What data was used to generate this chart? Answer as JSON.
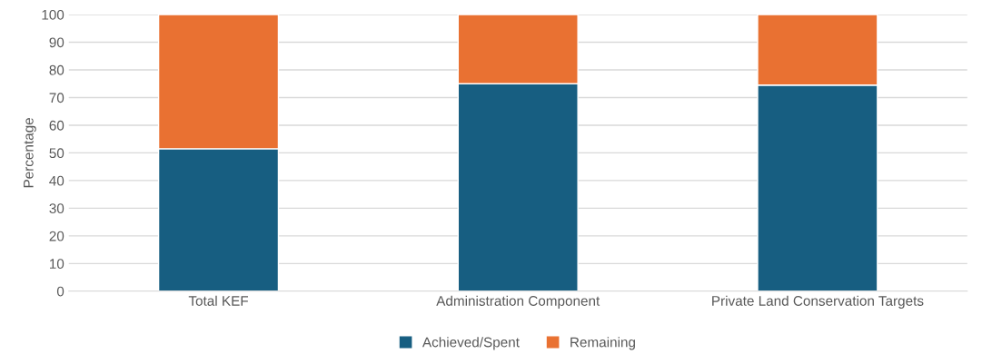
{
  "chart_data": {
    "type": "bar",
    "stacked": true,
    "ylabel": "Percentage",
    "categories": [
      "Total KEF",
      "Administration Component",
      "Private Land Conservation Targets"
    ],
    "series": [
      {
        "name": "Achieved/Spent",
        "color": "#175e81",
        "values": [
          51.5,
          75,
          74.5
        ]
      },
      {
        "name": "Remaining",
        "color": "#e97132",
        "values": [
          48.5,
          25,
          25.5
        ]
      }
    ],
    "ylim": [
      0,
      100
    ],
    "yticks": [
      0,
      10,
      20,
      30,
      40,
      50,
      60,
      70,
      80,
      90,
      100
    ],
    "grid": "y",
    "legend": "bottom"
  }
}
